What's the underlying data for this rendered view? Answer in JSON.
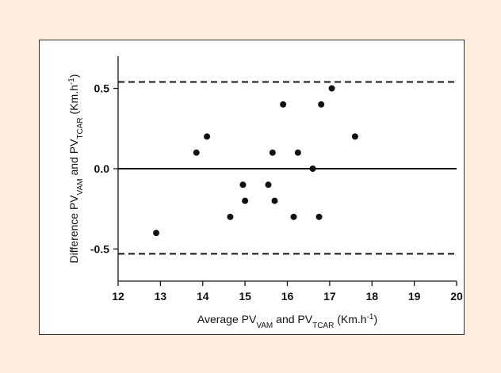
{
  "chart_data": {
    "type": "scatter",
    "xlabel": {
      "parts": [
        {
          "text": "Average PV",
          "sub": false,
          "sup": false
        },
        {
          "text": "VAM",
          "sub": true,
          "sup": false
        },
        {
          "text": " and PV",
          "sub": false,
          "sup": false
        },
        {
          "text": "TCAR",
          "sub": true,
          "sup": false
        },
        {
          "text": " (Km.h",
          "sub": false,
          "sup": false
        },
        {
          "text": "-1",
          "sub": false,
          "sup": true
        },
        {
          "text": ")",
          "sub": false,
          "sup": false
        }
      ]
    },
    "ylabel": {
      "parts": [
        {
          "text": "Difference PV",
          "sub": false,
          "sup": false
        },
        {
          "text": "VAM",
          "sub": true,
          "sup": false
        },
        {
          "text": " and PV",
          "sub": false,
          "sup": false
        },
        {
          "text": "TCAR",
          "sub": true,
          "sup": false
        },
        {
          "text": " (Km.h",
          "sub": false,
          "sup": false
        },
        {
          "text": "-1",
          "sub": false,
          "sup": true
        },
        {
          "text": ")",
          "sub": false,
          "sup": false
        }
      ]
    },
    "xlim": [
      12,
      20
    ],
    "ylim": [
      -0.7,
      0.7
    ],
    "x_ticks": [
      12,
      13,
      14,
      15,
      16,
      17,
      18,
      19,
      20
    ],
    "y_ticks": [
      -0.5,
      0.0,
      0.5
    ],
    "x_tick_labels": [
      "12",
      "13",
      "14",
      "15",
      "16",
      "17",
      "18",
      "19",
      "20"
    ],
    "y_tick_labels": [
      "-0.5",
      "0.0",
      "0.5"
    ],
    "grid": false,
    "points": [
      {
        "x": 12.9,
        "y": -0.4
      },
      {
        "x": 13.85,
        "y": 0.1
      },
      {
        "x": 14.1,
        "y": 0.2
      },
      {
        "x": 14.65,
        "y": -0.3
      },
      {
        "x": 14.95,
        "y": -0.1
      },
      {
        "x": 15.0,
        "y": -0.2
      },
      {
        "x": 15.55,
        "y": -0.1
      },
      {
        "x": 15.65,
        "y": 0.1
      },
      {
        "x": 15.7,
        "y": -0.2
      },
      {
        "x": 15.9,
        "y": 0.4
      },
      {
        "x": 16.15,
        "y": -0.3
      },
      {
        "x": 16.25,
        "y": 0.1
      },
      {
        "x": 16.6,
        "y": 0.0
      },
      {
        "x": 16.75,
        "y": -0.3
      },
      {
        "x": 16.8,
        "y": 0.4
      },
      {
        "x": 17.05,
        "y": 0.5
      },
      {
        "x": 17.6,
        "y": 0.2
      }
    ],
    "reference_lines": [
      {
        "y": 0.0,
        "style": "solid"
      },
      {
        "y": 0.54,
        "style": "dashed"
      },
      {
        "y": -0.53,
        "style": "dashed"
      }
    ]
  },
  "colors": {
    "background": "#fdeee0",
    "panel": "#ffffff",
    "ink": "#111111"
  }
}
